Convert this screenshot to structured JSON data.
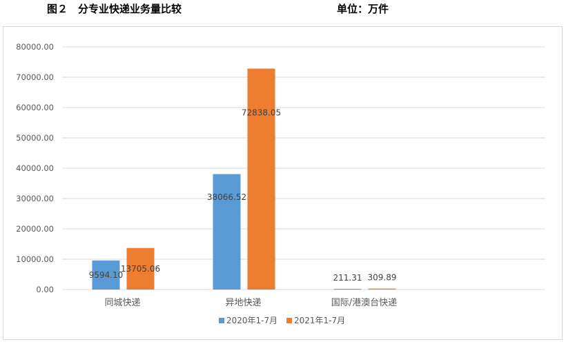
{
  "header": {
    "title": "图２　分专业快递业务量比较",
    "unit": "单位：万件"
  },
  "chart_data": {
    "type": "bar",
    "categories": [
      "同城快递",
      "异地快递",
      "国际/港澳台快递"
    ],
    "series": [
      {
        "name": "2020年1-7月",
        "values": [
          9594.1,
          38066.52,
          211.31
        ],
        "labels": [
          "9594.10",
          "38066.52",
          "211.31"
        ],
        "color": "#5b9bd5"
      },
      {
        "name": "2021年1-7月",
        "values": [
          13705.06,
          72838.05,
          309.89
        ],
        "labels": [
          "13705.06",
          "72838.05",
          "309.89"
        ],
        "color": "#ed7d31"
      }
    ],
    "yticks": [
      "0.00",
      "10000.00",
      "20000.00",
      "30000.00",
      "40000.00",
      "50000.00",
      "60000.00",
      "70000.00",
      "80000.00"
    ],
    "ylim": [
      0,
      80000
    ],
    "grid": true,
    "legend_position": "bottom",
    "gridline_color": "#d9d9d9"
  }
}
